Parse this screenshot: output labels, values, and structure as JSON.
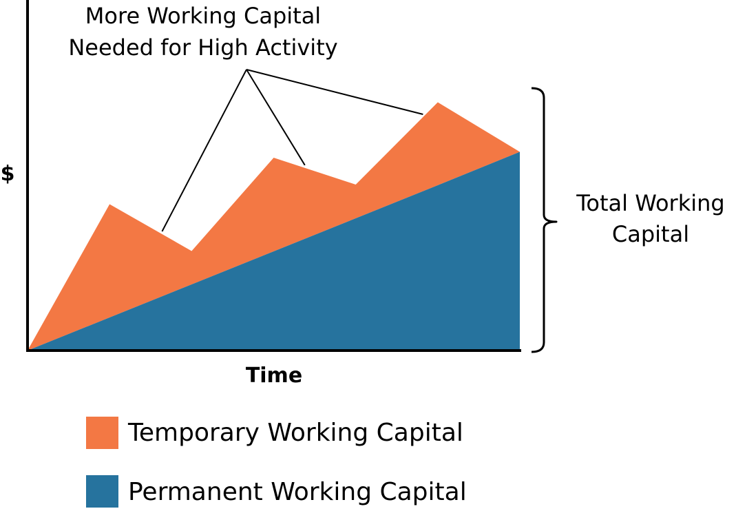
{
  "chart_data": {
    "type": "area",
    "title": "",
    "xlabel": "Time",
    "ylabel": "$",
    "grid": false,
    "legend_placement": "bottom-left",
    "x": [
      0,
      1,
      2,
      3,
      4,
      5,
      6
    ],
    "series": [
      {
        "name": "Permanent Working Capital",
        "color": "#26739e",
        "values": [
          0,
          0.96,
          1.92,
          2.88,
          3.84,
          4.8,
          5.77
        ]
      },
      {
        "name": "Temporary Working Capital",
        "color": "#f37844",
        "values": [
          0,
          3.29,
          0.97,
          2.72,
          0.98,
          2.41,
          0
        ]
      }
    ],
    "annotations": [
      {
        "lines": [
          "More Working Capital",
          "Needed for High Activity"
        ],
        "points_to_x": [
          1.64,
          3.38,
          4.82
        ]
      },
      {
        "lines": [
          "Total Working",
          "Capital"
        ],
        "bracket": "right"
      }
    ]
  }
}
